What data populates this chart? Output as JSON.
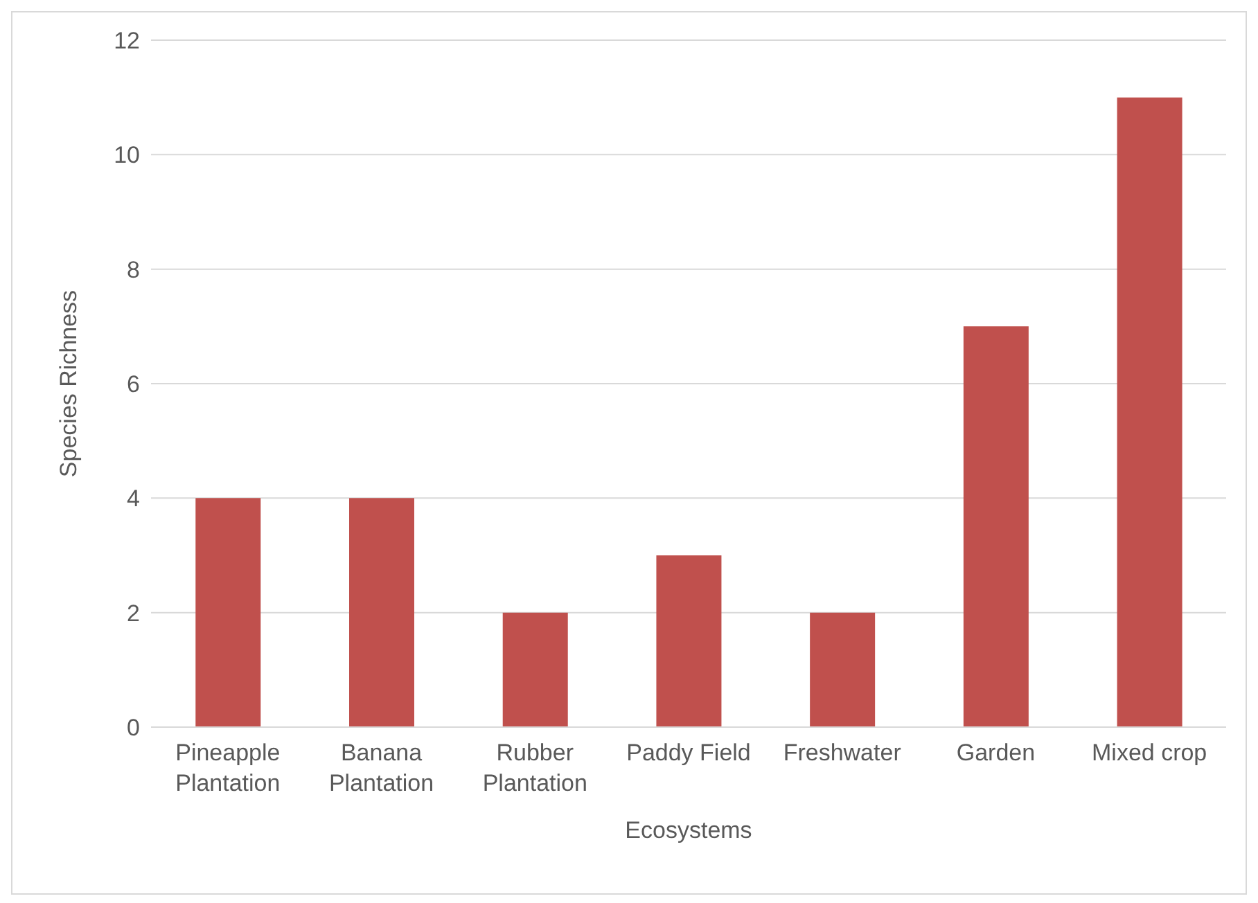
{
  "chart_data": {
    "type": "bar",
    "xlabel": "Ecosystems",
    "ylabel": "Species Richness",
    "categories": [
      "Pineapple Plantation",
      "Banana Plantation",
      "Rubber Plantation",
      "Paddy Field",
      "Freshwater",
      "Garden",
      "Mixed crop"
    ],
    "values": [
      4,
      4,
      2,
      3,
      2,
      7,
      11
    ],
    "color": "#c0504d",
    "ylim": [
      0,
      12
    ],
    "yticks": [
      0,
      2,
      4,
      6,
      8,
      10,
      12
    ],
    "grid": "y",
    "legend": false
  }
}
